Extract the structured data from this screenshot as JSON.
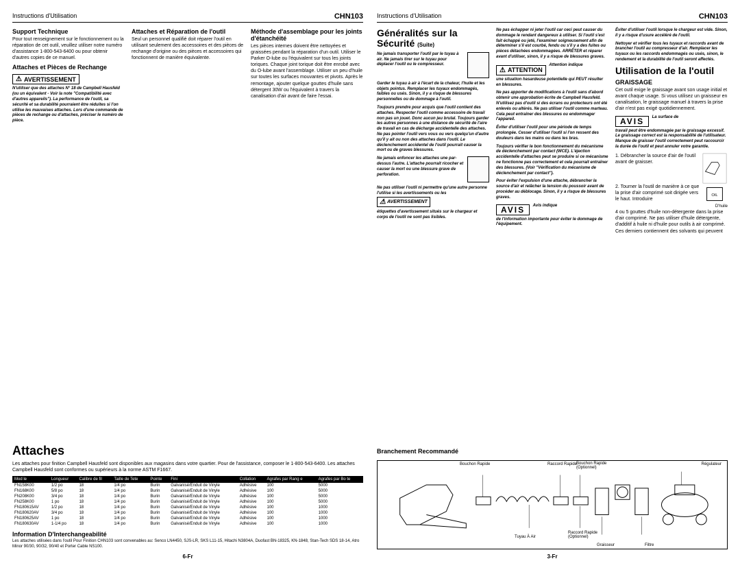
{
  "model": "CHN103",
  "headerLabel": "Instructions d'Utilisation",
  "pageLeft": {
    "col1": {
      "supportTitle": "Support Technique",
      "supportBody": "Pour tout renseignement sur le fonctionnement ou la réparation de cet outil, veuillez utiliser notre numéro d'assistance 1-800-543-6400 ou pour obtenir d'autres copies de ce manuel.",
      "attachesTitle": "Attaches et Pièces de Rechange",
      "warnLabel": "AVERTISSEMENT",
      "warnBody": "N'utiliser que des attaches N° 18 de Campbell Hausfeld (ou un équivalent - Voir la note \"Compatibilité avec d'autres appareils\"). La performance de l'outil, sa sécurité et sa durabilité pourraient être réduites si l'on utilise les mauvaises attaches. Lors d'une commande de pièces de rechange ou d'attaches, préciser le numéro de pièce."
    },
    "col2": {
      "repairTitle": "Attaches et Réparation de l'outil",
      "repairBody": "Seul un personnel qualifié doit réparer l'outil en utilisant seulement des accessoires et des pièces de rechange d'origine ou des pièces et accessoires qui fonctionnent de manière équivalente."
    },
    "col3": {
      "methodTitle": "Méthode d'assemblage pour les joints d'étanchéité",
      "methodBody": "Les pièces internes doivent être nettoyées et graissées pendant la réparation d'un outil. Utiliser le Parker O-lube ou l'équivalent sur tous les joints toriques. Chaque joint torique doit être enrobé avec du O-lube avant l'assemblage. Utiliser un peu d'huile sur toutes les surfaces mouvantes et pivots. Après le remontage, ajouter quelque gouttes d'huile sans détergent 30W ou l'équivalent à travers la canalisation d'air avant de faire l'essai."
    },
    "attachesBig": "Attaches",
    "attachesIntro": "Les attaches pour finition Campbell Hausfeld sont disponibles aux magasins dans votre quartier. Pour de l'assistance, composer le 1-800-543-6400. Les attaches Campbell Hausfeld sont conformes ou supérieurs à la norme ASTM F1667.",
    "tableHeaders": [
      "Mod le",
      "Longueur",
      "Calibre de fil",
      "Taille de Tete",
      "Pointe",
      "Fini",
      "Collation",
      "Agrafes par Rang e",
      "Agrafes par Bo te"
    ],
    "tableRows": [
      [
        "FN158K00",
        "1/2 po",
        "18",
        "1/4 po",
        "Burin",
        "Galvanisé/Enduit de Vinyle",
        "Adhésive",
        "100",
        "5000"
      ],
      [
        "FN168K00",
        "5/8 po",
        "18",
        "1/4 po",
        "Burin",
        "Galvanisé/Enduit de Vinyle",
        "Adhésive",
        "100",
        "5000"
      ],
      [
        "FN208K00",
        "3/4 po",
        "18",
        "1/4 po",
        "Burin",
        "Galvanisé/Enduit de Vinyle",
        "Adhésive",
        "100",
        "5000"
      ],
      [
        "FN258K00",
        "1 po",
        "18",
        "1/4 po",
        "Burin",
        "Galvanisé/Enduit de Vinyle",
        "Adhésive",
        "100",
        "5000"
      ],
      [
        "FN180615AV",
        "1/2 po",
        "18",
        "1/4 po",
        "Burin",
        "Galvanisé/Enduit de Vinyle",
        "Adhésive",
        "100",
        "1000"
      ],
      [
        "FN180620AV",
        "3/4 po",
        "18",
        "1/4 po",
        "Burin",
        "Galvanisé/Enduit de Vinyle",
        "Adhésive",
        "100",
        "1000"
      ],
      [
        "FN180625AV",
        "1 po",
        "18",
        "1/4 po",
        "Burin",
        "Galvanisé/Enduit de Vinyle",
        "Adhésive",
        "100",
        "1000"
      ],
      [
        "FN180630AV",
        "1-1/4 po",
        "18",
        "1/4 po",
        "Burin",
        "Galvanisé/Enduit de Vinyle",
        "Adhésive",
        "100",
        "1000"
      ]
    ],
    "interchTitle": "Information D'Interchangeabilité",
    "interchBody": "Les attaches utilisées dans l'outil Pour Finition CHN103 sont convenables au: Senco LN4450, SJS-LR, SKS L11-15, Hitachi N3804A, Duofast BN-18325, KN-1848, Stan-Tech SDS 18-14, Atro Minor 90/30, 90/32, 90/40 et Porter Cable NS100.",
    "pageNum": "6-Fr"
  },
  "pageRight": {
    "securityTitle": "Généralités sur la",
    "securitySub": "Sécurité",
    "securitySuite": "(Suite)",
    "warn1": "Ne jamais transporter l'outil par le tuyau à air. Ne jamais tirer sur le tuyau pour déplacer l'outil ou le compresseur.",
    "warn1b": "Garder le tuyau à air à l'écart de la chaleur, l'huile et les objets pointus. Remplacer les tuyaux endommagés, faibles ou usés. Sinon, il y a risque de blessures personnelles ou de dommage à l'outil.",
    "warn2": "Toujours prendre pour acquis que l'outil contient des attaches. Respecter l'outil comme accessoire de travail non pas un jouet. Donc aucun jeu brutal. Toujours garder les autres personnes à une distance de sécurité de l'aire de travail en cas de décharge accidentelle des attaches. Ne pas pointer l'outil vers vous ou vers quelqu'un d'autre qu'il y ait ou non des attaches dans l'outil. Le déclenchement accidentel de l'outil pourrait causer la mort ou de graves blessures.",
    "warn3": "Ne jamais enfoncer les attaches une par-dessus l'autre. L'attache pourrait ricocher et causer la mort ou une blessure grave de perforation.",
    "warn4a": "Ne pas utiliser l'outil ni permettre qu'une autre personne l'utilise si les avertissements ou les",
    "warn4label": "AVERTISSEMENT",
    "warn4b": "étiquettes d'avertissement situés sur le chargeur et corps de l'outil ne sont pas lisibles.",
    "colMid": {
      "warn5": "Ne pas échapper ni jeter l'outil car ceci peut causer du dommage le rendant dangereux à utiliser. Si l'outil s'est fait échappé ou jeté, l'examiner soigneusement afin de déterminer s'il est courbé, fendu ou s'il y a des fuites ou pièces détachées endommagées. ARRÊTER et réparer avant d'utiliser, sinon, il y a risque de blessures graves.",
      "attnLabel": "ATTENTION",
      "attnTail": "Attention indique",
      "attnBody": "une situation hasardeuse potentielle qui PEUT résulter en blessures.",
      "warn6": "Ne pas apporter de modifications à l'outil sans d'abord obtenir une approbation écrite de Campbell Hausfeld. N'utilisez pas d'outil si des écrans ou protecteurs ont été enlevés ou altérés. Ne pas utiliser l'outil comme marteau. Cela peut entraîner des blessures ou endommager l'appareil.",
      "warn7": "Éviter d'utiliser l'outil pour une période de temps prolongée. Cesser d'utiliser l'outil si l'on ressent des douleurs dans les mains ou dans les bras.",
      "warn8": "Toujours vérifier le bon fonctionnement du mécanisme de déclenchement par contact (WCE). L'éjection accidentelle d'attaches peut se produire si ce mécanisme ne fonctionne pas correctement et cela pourrait entraîner des blessures. (Voir \"Vérification du mécanisme de déclenchement par contact\").",
      "warn9": "Pour éviter l'expulsion d'une attache, débrancher la source d'air et relâcher la tension du poussoir avant de procéder au déblocage. Sinon, il y a risque de blessures graves.",
      "avisLabel": "AVIS",
      "avisTail": "Avis indique",
      "avisBody": "de l'information importante pour éviter le dommage de l'équipement."
    },
    "colRight": {
      "warn10": "Éviter d'utiliser l'outil lorsque le chargeur est vide. Sinon, il y a risque d'usure accéléré de l'outil.",
      "warn11": "Nettoyer et vérifier tous les tuyaux et raccords avant de brancher l'outil au compresseur d'air. Remplacer les tuyaux ou les raccords endommagés ou usés, sinon, le rendement et la durabilité de l'outil seront affectés.",
      "useTitle": "Utilisation de la l'outil",
      "greaseTitle": "GRAISSAGE",
      "greaseBody": "Cet outil exige le graissage avant son usage initial et avant chaque usage. Si vous utilisez un graisseur en canalisation, le graissage manuel à travers la prise d'air n'est pas exigé quotidiennement.",
      "avisLabel2": "AVIS",
      "avisTail2": "La surface de",
      "warn12": "travail peut être endommagée par le graissage excessif. Le graissage correct est la responsabilité de l'utilisateur. Manque de graisser l'outil correctement peut raccourcir la durée de l'outil et peut annuler votre garantie.",
      "step1": "1.  Débrancher la source d'air de l'outil avant de graisser.",
      "step2": "2.  Tourner la l'outil de manière à ce que la prise d'air comprimé soit dirigée vers le haut. Introduire",
      "step2b": "4 ou 5 gouttes d'huile non-détergente dans la prise d'air comprimé. Ne pas utiliser d'huile détergente, d'additif à huile ni d'huile pour outils à air comprimé. Ces derniers contiennent des solvants qui peuvent",
      "oilLabel": "D'huile"
    },
    "branchTitle": "Branchement Recommandé",
    "diagLabels": {
      "bouchonRapide": "Bouchon Rapide",
      "raccordRapide": "Raccord Rapide",
      "bouchonOpt": "Bouchon Rapide (Optionnel)",
      "raccordOpt": "Raccord Rapide (Optionnel)",
      "tuyau": "Tuyau À Air",
      "graisseur": "Graisseur",
      "filtre": "Filtre",
      "regulateur": "Régulateur"
    },
    "pageNum": "3-Fr"
  }
}
